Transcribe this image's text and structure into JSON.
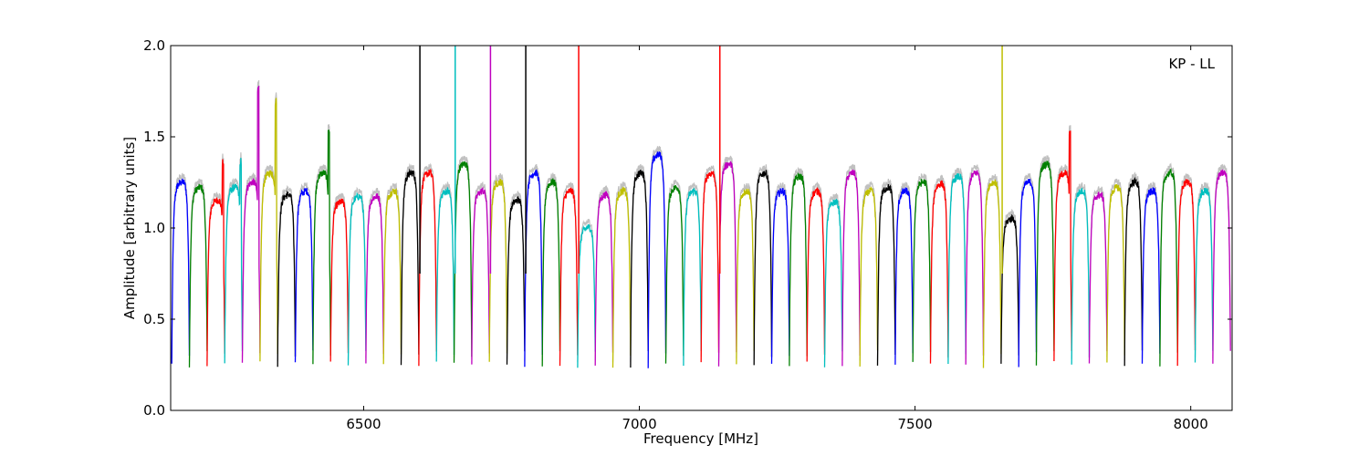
{
  "chart_data": {
    "type": "line",
    "title": "",
    "annotation": "KP - LL",
    "xlabel": "Frequency [MHz]",
    "ylabel": "Amplitude [arbitrary units]",
    "xlim": [
      6150,
      8075
    ],
    "ylim": [
      0.0,
      2.0
    ],
    "xticks": [
      6500,
      7000,
      7500,
      8000
    ],
    "xtick_labels": [
      "6500",
      "7000",
      "7500",
      "8000"
    ],
    "yticks": [
      0.0,
      0.5,
      1.0,
      1.5,
      2.0
    ],
    "ytick_labels": [
      "0.0",
      "0.5",
      "1.0",
      "1.5",
      "2.0"
    ],
    "grid": false,
    "legend": "none",
    "channel_width_mhz": 32,
    "background_trace_color": "#c0c0c0",
    "series_colors": [
      "#0000ff",
      "#008000",
      "#ff0000",
      "#00bfbf",
      "#bf00bf",
      "#bfbf00",
      "#000000"
    ],
    "channels": [
      {
        "start": 6152,
        "level": 1.25,
        "color": "#0000ff"
      },
      {
        "start": 6184,
        "level": 1.22,
        "color": "#008000"
      },
      {
        "start": 6216,
        "level": 1.15,
        "color": "#ff0000",
        "peak": 1.39
      },
      {
        "start": 6248,
        "level": 1.22,
        "color": "#00bfbf",
        "peak": 1.39
      },
      {
        "start": 6280,
        "level": 1.25,
        "color": "#bf00bf",
        "peak": 1.78
      },
      {
        "start": 6312,
        "level": 1.3,
        "color": "#bfbf00",
        "peak": 1.72
      },
      {
        "start": 6344,
        "level": 1.18,
        "color": "#000000"
      },
      {
        "start": 6376,
        "level": 1.2,
        "color": "#0000ff"
      },
      {
        "start": 6408,
        "level": 1.3,
        "color": "#008000",
        "peak": 1.55
      },
      {
        "start": 6440,
        "level": 1.14,
        "color": "#ff0000"
      },
      {
        "start": 6472,
        "level": 1.17,
        "color": "#00bfbf"
      },
      {
        "start": 6504,
        "level": 1.17,
        "color": "#bf00bf"
      },
      {
        "start": 6536,
        "level": 1.2,
        "color": "#bfbf00"
      },
      {
        "start": 6568,
        "level": 1.3,
        "color": "#000000"
      },
      {
        "start": 6600,
        "level": 1.3,
        "color": "#ff0000",
        "spike": 2.0
      },
      {
        "start": 6632,
        "level": 1.2,
        "color": "#00bfbf"
      },
      {
        "start": 6664,
        "level": 1.35,
        "color": "#008000",
        "spike": 2.0
      },
      {
        "start": 6696,
        "level": 1.2,
        "color": "#bf00bf"
      },
      {
        "start": 6728,
        "level": 1.25,
        "color": "#bfbf00",
        "spike": 2.0
      },
      {
        "start": 6760,
        "level": 1.15,
        "color": "#000000"
      },
      {
        "start": 6792,
        "level": 1.3,
        "color": "#0000ff",
        "spike": 2.0
      },
      {
        "start": 6824,
        "level": 1.25,
        "color": "#008000"
      },
      {
        "start": 6856,
        "level": 1.2,
        "color": "#ff0000"
      },
      {
        "start": 6888,
        "level": 1.0,
        "color": "#00bfbf",
        "spike": 2.0
      },
      {
        "start": 6920,
        "level": 1.18,
        "color": "#bf00bf"
      },
      {
        "start": 6952,
        "level": 1.2,
        "color": "#bfbf00"
      },
      {
        "start": 6984,
        "level": 1.3,
        "color": "#000000"
      },
      {
        "start": 7016,
        "level": 1.4,
        "color": "#0000ff"
      },
      {
        "start": 7048,
        "level": 1.22,
        "color": "#008000"
      },
      {
        "start": 7080,
        "level": 1.2,
        "color": "#00bfbf"
      },
      {
        "start": 7112,
        "level": 1.3,
        "color": "#ff0000"
      },
      {
        "start": 7144,
        "level": 1.35,
        "color": "#bf00bf",
        "spike": 2.0
      },
      {
        "start": 7176,
        "level": 1.2,
        "color": "#bfbf00"
      },
      {
        "start": 7208,
        "level": 1.3,
        "color": "#000000"
      },
      {
        "start": 7240,
        "level": 1.2,
        "color": "#0000ff"
      },
      {
        "start": 7272,
        "level": 1.28,
        "color": "#008000"
      },
      {
        "start": 7304,
        "level": 1.2,
        "color": "#ff0000"
      },
      {
        "start": 7336,
        "level": 1.14,
        "color": "#00bfbf"
      },
      {
        "start": 7368,
        "level": 1.3,
        "color": "#bf00bf"
      },
      {
        "start": 7400,
        "level": 1.2,
        "color": "#bfbf00"
      },
      {
        "start": 7432,
        "level": 1.22,
        "color": "#000000"
      },
      {
        "start": 7464,
        "level": 1.2,
        "color": "#0000ff"
      },
      {
        "start": 7496,
        "level": 1.25,
        "color": "#008000"
      },
      {
        "start": 7528,
        "level": 1.24,
        "color": "#ff0000"
      },
      {
        "start": 7560,
        "level": 1.28,
        "color": "#00bfbf"
      },
      {
        "start": 7592,
        "level": 1.3,
        "color": "#bf00bf"
      },
      {
        "start": 7624,
        "level": 1.25,
        "color": "#bfbf00"
      },
      {
        "start": 7656,
        "level": 1.05,
        "color": "#000000",
        "spike": 2.0
      },
      {
        "start": 7688,
        "level": 1.25,
        "color": "#0000ff"
      },
      {
        "start": 7720,
        "level": 1.35,
        "color": "#008000"
      },
      {
        "start": 7752,
        "level": 1.3,
        "color": "#ff0000",
        "peak": 1.54
      },
      {
        "start": 7784,
        "level": 1.2,
        "color": "#00bfbf"
      },
      {
        "start": 7816,
        "level": 1.18,
        "color": "#bf00bf"
      },
      {
        "start": 7848,
        "level": 1.22,
        "color": "#bfbf00"
      },
      {
        "start": 7880,
        "level": 1.25,
        "color": "#000000"
      },
      {
        "start": 7912,
        "level": 1.2,
        "color": "#0000ff"
      },
      {
        "start": 7944,
        "level": 1.3,
        "color": "#008000"
      },
      {
        "start": 7976,
        "level": 1.25,
        "color": "#ff0000"
      },
      {
        "start": 8008,
        "level": 1.2,
        "color": "#00bfbf"
      },
      {
        "start": 8040,
        "level": 1.3,
        "color": "#bf00bf"
      }
    ]
  }
}
